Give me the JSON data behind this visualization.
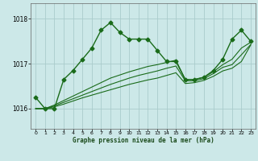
{
  "title": "Graphe pression niveau de la mer (hPa)",
  "bg_color": "#cce8e8",
  "grid_color": "#aacccc",
  "line_color": "#1a6b1a",
  "marker": "D",
  "markersize": 2.5,
  "ylim": [
    1015.55,
    1018.35
  ],
  "yticks": [
    1016,
    1017,
    1018
  ],
  "xlim": [
    -0.5,
    23.5
  ],
  "xticks": [
    0,
    1,
    2,
    3,
    4,
    5,
    6,
    7,
    8,
    9,
    10,
    11,
    12,
    13,
    14,
    15,
    16,
    17,
    18,
    19,
    20,
    21,
    22,
    23
  ],
  "series": [
    [
      1016.25,
      1016.0,
      1016.0,
      1016.65,
      1016.85,
      1017.1,
      1017.35,
      1017.75,
      1017.92,
      1017.7,
      1017.55,
      1017.55,
      1017.55,
      1017.3,
      1017.05,
      1017.05,
      1016.65,
      1016.65,
      1016.7,
      1016.85,
      1017.1,
      1017.55,
      1017.75,
      1017.5
    ],
    [
      1016.0,
      1016.0,
      1016.08,
      1016.18,
      1016.28,
      1016.38,
      1016.48,
      1016.58,
      1016.68,
      1016.75,
      1016.82,
      1016.88,
      1016.94,
      1016.98,
      1017.03,
      1017.08,
      1016.65,
      1016.65,
      1016.7,
      1016.82,
      1016.98,
      1017.1,
      1017.35,
      1017.48
    ],
    [
      1016.0,
      1016.0,
      1016.06,
      1016.14,
      1016.22,
      1016.3,
      1016.38,
      1016.46,
      1016.54,
      1016.61,
      1016.68,
      1016.74,
      1016.79,
      1016.84,
      1016.9,
      1016.95,
      1016.62,
      1016.62,
      1016.67,
      1016.78,
      1016.92,
      1016.98,
      1017.2,
      1017.43
    ],
    [
      1016.0,
      1016.0,
      1016.04,
      1016.1,
      1016.17,
      1016.24,
      1016.3,
      1016.36,
      1016.42,
      1016.48,
      1016.54,
      1016.59,
      1016.64,
      1016.68,
      1016.74,
      1016.8,
      1016.56,
      1016.58,
      1016.63,
      1016.72,
      1016.84,
      1016.9,
      1017.05,
      1017.42
    ]
  ]
}
